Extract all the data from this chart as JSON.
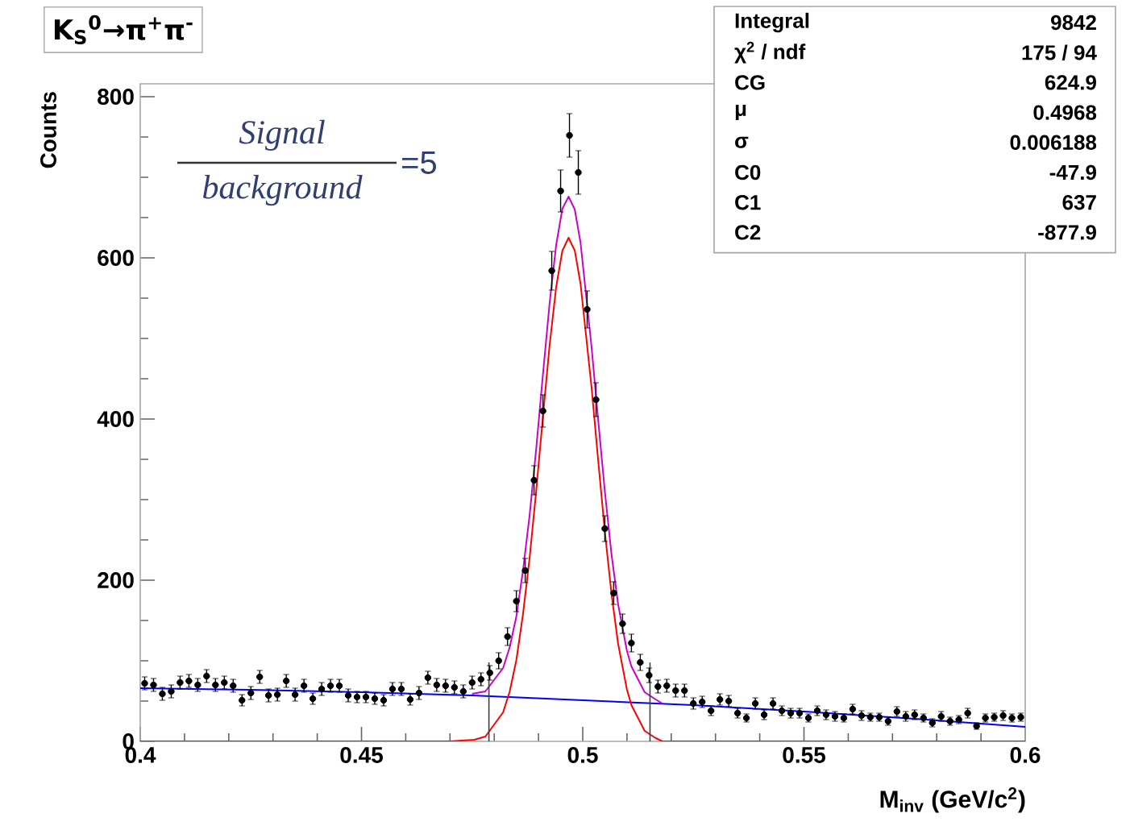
{
  "chart_data": {
    "type": "scatter",
    "title": "K$_{S}$$^{0}$→π$^{+}$π$^{-}$",
    "xlabel": "M$_{inv}$ (GeV/c$^{2}$)",
    "ylabel": "Counts",
    "xlim": [
      0.4,
      0.6
    ],
    "xticks": [
      0.4,
      0.45,
      0.5,
      0.55,
      0.6
    ],
    "ylim": [
      0,
      816
    ],
    "yticks": [
      0,
      200,
      400,
      600,
      800
    ],
    "marker": "circle",
    "annotations": [
      "Signal",
      "background",
      "=5",
      "Integral",
      "9842",
      "χ$^{2}$ / ndf",
      "175 / 94",
      "CG",
      "624.9",
      "μ",
      "0.4968",
      "σ",
      "0.006188",
      "C0",
      "-47.9",
      "C1",
      "637",
      "C2",
      "-877.9"
    ],
    "ref_lines": [
      {
        "axis": "x",
        "value": 0.4788,
        "color": "#404040"
      },
      {
        "axis": "x",
        "value": 0.5152,
        "color": "#404040"
      }
    ],
    "series": [
      {
        "color": "#000000",
        "x": [
          0.401,
          0.403,
          0.405,
          0.407,
          0.409,
          0.411,
          0.413,
          0.415,
          0.417,
          0.419,
          0.421,
          0.423,
          0.425,
          0.427,
          0.429,
          0.431,
          0.433,
          0.435,
          0.437,
          0.439,
          0.441,
          0.443,
          0.445,
          0.447,
          0.449,
          0.451,
          0.453,
          0.455,
          0.457,
          0.459,
          0.461,
          0.463,
          0.465,
          0.467,
          0.469,
          0.471,
          0.473,
          0.475,
          0.477,
          0.479,
          0.481,
          0.483,
          0.485,
          0.487,
          0.489,
          0.491,
          0.493,
          0.495,
          0.497,
          0.499,
          0.501,
          0.503,
          0.505,
          0.507,
          0.509,
          0.511,
          0.513,
          0.515,
          0.517,
          0.519,
          0.521,
          0.523,
          0.525,
          0.527,
          0.529,
          0.531,
          0.533,
          0.535,
          0.537,
          0.539,
          0.541,
          0.543,
          0.545,
          0.547,
          0.549,
          0.551,
          0.553,
          0.555,
          0.557,
          0.559,
          0.561,
          0.563,
          0.565,
          0.567,
          0.569,
          0.571,
          0.573,
          0.575,
          0.577,
          0.579,
          0.581,
          0.583,
          0.585,
          0.587,
          0.589,
          0.591,
          0.593,
          0.595,
          0.597,
          0.599
        ],
        "values": [
          72,
          70,
          59,
          62,
          73,
          75,
          70,
          81,
          70,
          73,
          69,
          51,
          60,
          80,
          57,
          58,
          75,
          58,
          69,
          53,
          65,
          69,
          69,
          57,
          55,
          55,
          53,
          51,
          65,
          65,
          52,
          60,
          79,
          70,
          69,
          67,
          62,
          73,
          77,
          85,
          100,
          130,
          174,
          212,
          324,
          410,
          584,
          683,
          752,
          706,
          536,
          424,
          264,
          184,
          146,
          122,
          98,
          82,
          68,
          69,
          63,
          63,
          47,
          49,
          38,
          52,
          50,
          35,
          29,
          47,
          33,
          47,
          38,
          35,
          35,
          29,
          38,
          33,
          31,
          29,
          40,
          32,
          30,
          30,
          25,
          37,
          31,
          33,
          29,
          23,
          31,
          25,
          27,
          35,
          19,
          29,
          30,
          32,
          29,
          30
        ],
        "errors": [
          8,
          8,
          8,
          8,
          8,
          8,
          8,
          8,
          8,
          8,
          8,
          7,
          8,
          8,
          8,
          8,
          8,
          8,
          8,
          7,
          8,
          8,
          8,
          8,
          7,
          7,
          7,
          7,
          8,
          8,
          7,
          8,
          8,
          8,
          8,
          8,
          8,
          8,
          8,
          9,
          10,
          11,
          13,
          15,
          18,
          20,
          24,
          26,
          27,
          27,
          23,
          21,
          16,
          14,
          12,
          11,
          10,
          9,
          8,
          8,
          8,
          8,
          7,
          7,
          6,
          7,
          7,
          6,
          5,
          7,
          6,
          7,
          6,
          6,
          6,
          5,
          6,
          6,
          6,
          5,
          6,
          6,
          5,
          5,
          5,
          6,
          6,
          6,
          5,
          5,
          6,
          5,
          5,
          6,
          4,
          5,
          5,
          6,
          5,
          5
        ]
      },
      {
        "type": "line",
        "marker": "none",
        "color": "#0000ff",
        "x": [
          0.4,
          0.425,
          0.45,
          0.475,
          0.5,
          0.525,
          0.55,
          0.575,
          0.6
        ],
        "values": [
          66,
          64,
          61,
          57,
          51,
          45,
          37,
          28,
          18
        ]
      },
      {
        "type": "line",
        "marker": "none",
        "color": "#ff0000",
        "x": [
          0.4,
          0.47,
          0.4755,
          0.478,
          0.482,
          0.4835,
          0.485,
          0.4865,
          0.488,
          0.4895,
          0.491,
          0.4925,
          0.494,
          0.4954,
          0.4968,
          0.4982,
          0.4995,
          0.502,
          0.5035,
          0.505,
          0.5065,
          0.508,
          0.51,
          0.511,
          0.514,
          0.5165,
          0.518,
          0.6
        ],
        "values": [
          0,
          0,
          2,
          6,
          36,
          62,
          101,
          158,
          228,
          312,
          403,
          491,
          564,
          609,
          625,
          609,
          568,
          439,
          348,
          260,
          183,
          121,
          64,
          45,
          13,
          4,
          0,
          0
        ]
      },
      {
        "type": "line",
        "marker": "none",
        "color": "#cc00cc",
        "x": [
          0.475,
          0.478,
          0.482,
          0.4835,
          0.485,
          0.4865,
          0.488,
          0.4895,
          0.491,
          0.4925,
          0.494,
          0.4954,
          0.4968,
          0.4982,
          0.4995,
          0.502,
          0.5035,
          0.505,
          0.5065,
          0.508,
          0.51,
          0.511,
          0.514,
          0.5165,
          0.518
        ],
        "values": [
          59,
          62,
          91,
          117,
          155,
          212,
          281,
          364,
          455,
          543,
          616,
          661,
          676,
          660,
          619,
          489,
          398,
          310,
          232,
          170,
          112,
          93,
          61,
          52,
          47
        ]
      }
    ]
  }
}
